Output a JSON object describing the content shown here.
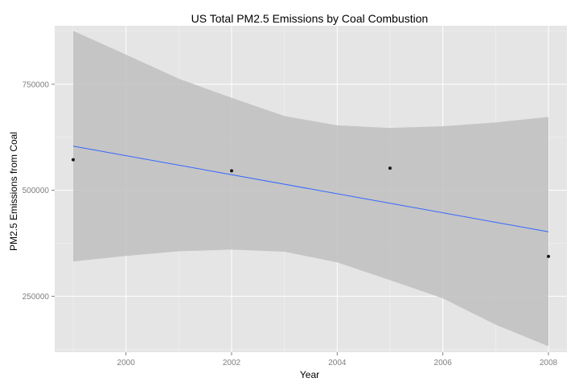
{
  "chart_data": {
    "type": "scatter",
    "title": "US Total PM2.5 Emissions by Coal Combustion",
    "xlabel": "Year",
    "ylabel": "PM2.5 Emissions from Coal",
    "xlim": [
      1998.65,
      2008.35
    ],
    "ylim": [
      118000,
      888000
    ],
    "x_ticks": [
      2000,
      2002,
      2004,
      2006,
      2008
    ],
    "x_tick_labels": [
      "2000",
      "2002",
      "2004",
      "2006",
      "2008"
    ],
    "y_ticks": [
      250000,
      500000,
      750000
    ],
    "y_tick_labels": [
      "250000",
      "500000",
      "750000"
    ],
    "grid": true,
    "legend": "none",
    "colors": {
      "panel": "#e5e5e5",
      "grid": "#ffffff",
      "point": "#1a1a1a",
      "fit_line": "#3366ff",
      "ribbon": "#bfbfbf"
    },
    "series": [
      {
        "x": [
          1999,
          2002,
          2005,
          2008
        ],
        "y": [
          572000,
          546000,
          552000,
          344000
        ]
      }
    ],
    "fit": {
      "method": "linear",
      "x": [
        1999,
        2008
      ],
      "y": [
        604000,
        402000
      ]
    },
    "confidence_band": {
      "x": [
        1999,
        2000,
        2001,
        2002,
        2003,
        2004,
        2005,
        2006,
        2007,
        2008
      ],
      "upper": [
        876000,
        820000,
        763000,
        718000,
        675000,
        653000,
        647000,
        651000,
        660000,
        673000
      ],
      "lower": [
        332000,
        345000,
        356000,
        360000,
        355000,
        330000,
        288000,
        245000,
        183000,
        132000
      ]
    }
  }
}
